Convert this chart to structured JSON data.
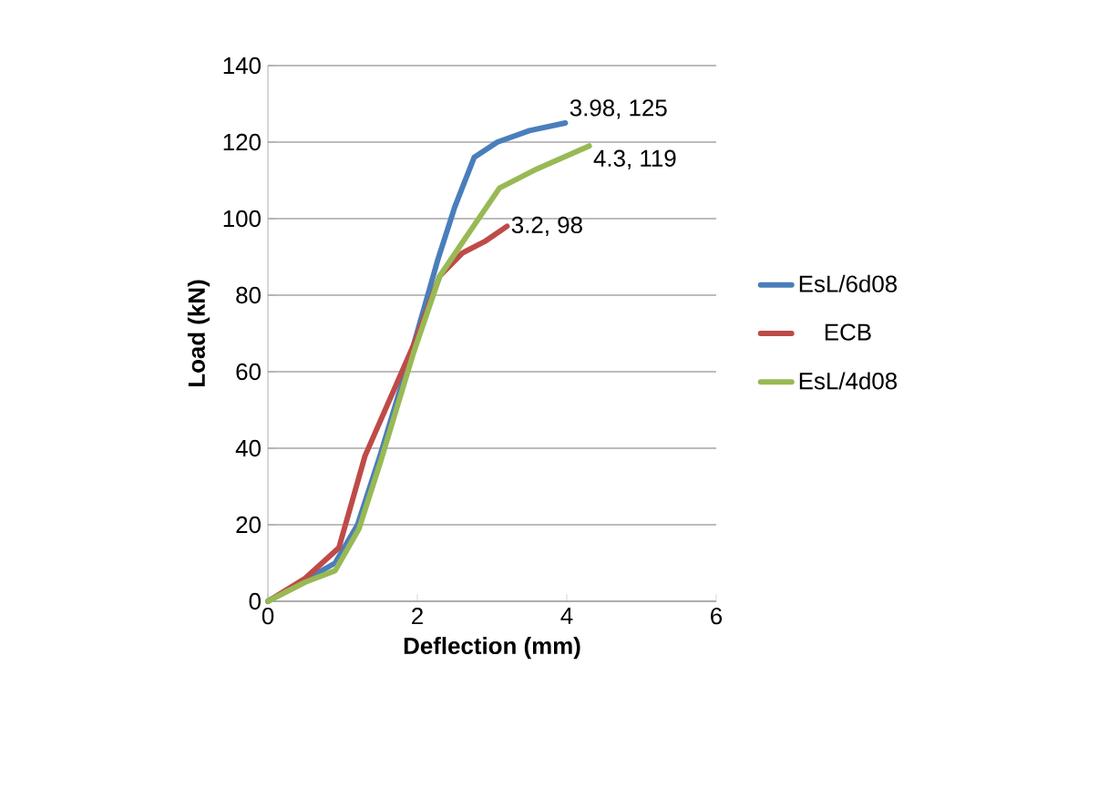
{
  "chart_data": {
    "type": "line",
    "xlabel": "Deflection (mm)",
    "ylabel": "Load (kN)",
    "xlim": [
      0,
      6
    ],
    "xticks": [
      0,
      2,
      4,
      6
    ],
    "ylim": [
      0,
      140
    ],
    "yticks": [
      0,
      20,
      40,
      60,
      80,
      100,
      120,
      140
    ],
    "grid": "y",
    "legend": "right",
    "marker": "none",
    "line_style": "solid",
    "series": [
      {
        "name": "EsL/6d08",
        "color": "#4a7ebb",
        "x": [
          0,
          0.45,
          0.9,
          1.2,
          1.5,
          1.95,
          2.27,
          2.5,
          2.76,
          3.07,
          3.5,
          3.98
        ],
        "values": [
          0,
          5,
          10,
          20,
          38,
          67,
          89,
          103,
          116,
          120,
          123,
          125
        ]
      },
      {
        "name": "ECB",
        "color": "#be4b48",
        "x": [
          0,
          0.5,
          0.95,
          1.3,
          1.95,
          2.3,
          2.6,
          2.9,
          3.2
        ],
        "values": [
          0,
          6,
          14,
          38,
          67,
          85,
          91,
          94,
          98
        ]
      },
      {
        "name": "EsL/4d08",
        "color": "#98b954",
        "x": [
          0,
          0.5,
          0.9,
          1.22,
          1.5,
          1.95,
          2.3,
          2.68,
          3.1,
          3.6,
          4.3
        ],
        "values": [
          0,
          5,
          8,
          19,
          36,
          65,
          85,
          96,
          108,
          113,
          119
        ]
      }
    ],
    "annotations": [
      {
        "text": "3.98, 125",
        "x": 3.98,
        "y": 125
      },
      {
        "text": "4.3, 119",
        "x": 4.3,
        "y": 119
      },
      {
        "text": "3.2, 98",
        "x": 3.2,
        "y": 98
      }
    ]
  }
}
